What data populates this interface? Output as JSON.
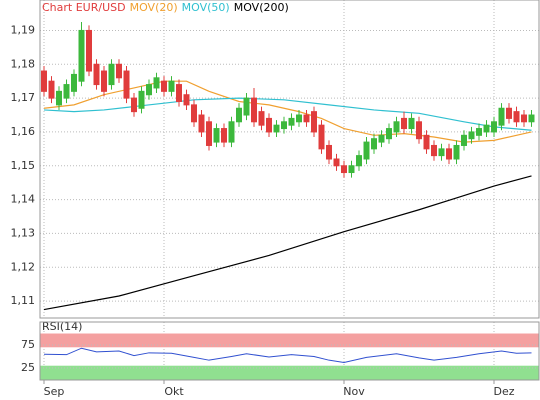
{
  "chart_data": [
    {
      "type": "candlestick",
      "title": "Chart EUR/USD",
      "categories": [
        "Sep",
        null,
        null,
        null,
        null,
        null,
        null,
        null,
        null,
        null,
        null,
        null,
        null,
        null,
        null,
        null,
        "Okt",
        null,
        null,
        null,
        null,
        null,
        null,
        null,
        null,
        null,
        null,
        null,
        null,
        null,
        null,
        null,
        null,
        null,
        null,
        null,
        null,
        null,
        null,
        null,
        "Nov",
        null,
        null,
        null,
        null,
        null,
        null,
        null,
        null,
        null,
        null,
        null,
        null,
        null,
        null,
        null,
        null,
        null,
        null,
        null,
        "Dez",
        null,
        null,
        null,
        null,
        null
      ],
      "open": [
        1.178,
        1.175,
        1.168,
        1.17,
        1.172,
        1.175,
        1.19,
        1.18,
        1.178,
        1.174,
        1.18,
        1.178,
        1.17,
        1.167,
        1.171,
        1.173,
        1.175,
        1.172,
        1.174,
        1.171,
        1.168,
        1.165,
        1.163,
        1.157,
        1.161,
        1.157,
        1.163,
        1.165,
        1.17,
        1.166,
        1.164,
        1.16,
        1.161,
        1.162,
        1.163,
        1.165,
        1.166,
        1.162,
        1.156,
        1.152,
        1.15,
        1.148,
        1.15,
        1.152,
        1.155,
        1.157,
        1.158,
        1.16,
        1.164,
        1.161,
        1.163,
        1.159,
        1.156,
        1.153,
        1.155,
        1.152,
        1.156,
        1.158,
        1.159,
        1.16,
        1.16,
        1.162,
        1.167,
        1.166,
        1.165,
        1.163
      ],
      "high": [
        1.1795,
        1.1765,
        1.1735,
        1.1755,
        1.1785,
        1.1925,
        1.1915,
        1.1815,
        1.1795,
        1.1815,
        1.1815,
        1.1795,
        1.1715,
        1.1735,
        1.1755,
        1.1775,
        1.1765,
        1.1765,
        1.1755,
        1.1725,
        1.1695,
        1.1665,
        1.1645,
        1.1625,
        1.1625,
        1.1645,
        1.1685,
        1.1715,
        1.173,
        1.1675,
        1.1655,
        1.1635,
        1.1645,
        1.1655,
        1.1665,
        1.1665,
        1.1675,
        1.1635,
        1.1575,
        1.1535,
        1.1515,
        1.1515,
        1.1545,
        1.1585,
        1.1595,
        1.1605,
        1.1625,
        1.1645,
        1.166,
        1.1655,
        1.1645,
        1.1605,
        1.1575,
        1.1565,
        1.1565,
        1.1575,
        1.1605,
        1.1615,
        1.1625,
        1.1635,
        1.1645,
        1.1685,
        1.1685,
        1.1675,
        1.1665,
        1.1665
      ],
      "low": [
        1.1705,
        1.1685,
        1.1665,
        1.1685,
        1.1705,
        1.1735,
        1.1765,
        1.1725,
        1.1705,
        1.1725,
        1.1745,
        1.1685,
        1.1645,
        1.1655,
        1.1695,
        1.1715,
        1.1705,
        1.1705,
        1.1675,
        1.1665,
        1.1615,
        1.1585,
        1.1545,
        1.1555,
        1.1555,
        1.1555,
        1.1615,
        1.1635,
        1.1615,
        1.1605,
        1.1585,
        1.1585,
        1.1595,
        1.1605,
        1.1615,
        1.1615,
        1.1585,
        1.1535,
        1.1505,
        1.1485,
        1.1465,
        1.1465,
        1.1485,
        1.1505,
        1.1535,
        1.1555,
        1.1565,
        1.1585,
        1.1595,
        1.1595,
        1.1565,
        1.1535,
        1.1515,
        1.1515,
        1.1505,
        1.1505,
        1.1545,
        1.1565,
        1.1575,
        1.1585,
        1.1585,
        1.1605,
        1.1625,
        1.1615,
        1.1615,
        1.1615
      ],
      "close": [
        1.172,
        1.17,
        1.172,
        1.174,
        1.177,
        1.19,
        1.178,
        1.174,
        1.172,
        1.18,
        1.176,
        1.17,
        1.166,
        1.172,
        1.174,
        1.176,
        1.172,
        1.175,
        1.169,
        1.168,
        1.163,
        1.16,
        1.156,
        1.161,
        1.157,
        1.163,
        1.167,
        1.17,
        1.163,
        1.162,
        1.16,
        1.162,
        1.163,
        1.164,
        1.165,
        1.163,
        1.16,
        1.155,
        1.152,
        1.15,
        1.148,
        1.15,
        1.153,
        1.157,
        1.158,
        1.159,
        1.161,
        1.163,
        1.161,
        1.164,
        1.158,
        1.155,
        1.153,
        1.155,
        1.152,
        1.156,
        1.159,
        1.16,
        1.161,
        1.162,
        1.163,
        1.167,
        1.164,
        1.163,
        1.163,
        1.165
      ],
      "up_color": "#3cb83c",
      "down_color": "#e03c3c",
      "title_color": "#e03c3c",
      "series": [
        {
          "name": "MOV(20)",
          "color": "#f0a030",
          "x": [
            0,
            4,
            8,
            12,
            16,
            19,
            22,
            26,
            30,
            34,
            37,
            40,
            44,
            48,
            52,
            56,
            60,
            63,
            65
          ],
          "values": [
            1.167,
            1.168,
            1.171,
            1.173,
            1.175,
            1.175,
            1.172,
            1.169,
            1.168,
            1.166,
            1.164,
            1.161,
            1.159,
            1.1595,
            1.1585,
            1.157,
            1.1575,
            1.159,
            1.16
          ]
        },
        {
          "name": "MOV(50)",
          "color": "#30c0d0",
          "x": [
            0,
            4,
            8,
            12,
            16,
            20,
            26,
            32,
            38,
            44,
            50,
            56,
            60,
            65
          ],
          "values": [
            1.1665,
            1.166,
            1.1665,
            1.1675,
            1.1685,
            1.1695,
            1.17,
            1.1695,
            1.168,
            1.1665,
            1.1655,
            1.163,
            1.1615,
            1.1605
          ]
        },
        {
          "name": "MOV(200)",
          "color": "#000000",
          "x": [
            0,
            10,
            20,
            30,
            40,
            50,
            55,
            60,
            65
          ],
          "values": [
            1.1075,
            1.1115,
            1.1175,
            1.1235,
            1.1305,
            1.137,
            1.1405,
            1.144,
            1.147
          ]
        }
      ],
      "ylim": [
        1.105,
        1.199
      ],
      "yticks": [
        {
          "value": 1.11,
          "label": "1,11"
        },
        {
          "value": 1.12,
          "label": "1,12"
        },
        {
          "value": 1.13,
          "label": "1,13"
        },
        {
          "value": 1.14,
          "label": "1,14"
        },
        {
          "value": 1.15,
          "label": "1,15"
        },
        {
          "value": 1.16,
          "label": "1,16"
        },
        {
          "value": 1.17,
          "label": "1,17"
        },
        {
          "value": 1.18,
          "label": "1,18"
        },
        {
          "value": 1.19,
          "label": "1,19"
        }
      ],
      "grid": true
    },
    {
      "type": "line",
      "title": "RSI(14)",
      "x": [
        0,
        3,
        5,
        7,
        10,
        12,
        14,
        17,
        20,
        22,
        25,
        27,
        30,
        33,
        36,
        38,
        40,
        43,
        47,
        50,
        52,
        55,
        58,
        61,
        63,
        65
      ],
      "values": [
        55,
        54,
        68,
        60,
        62,
        52,
        58,
        57,
        48,
        42,
        50,
        56,
        49,
        54,
        50,
        42,
        37,
        48,
        56,
        47,
        42,
        48,
        56,
        62,
        57,
        58
      ],
      "color": "#3050d0",
      "ylim": [
        0,
        100
      ],
      "yticks": [
        25,
        75
      ],
      "zones": [
        {
          "from": 70,
          "to": 100,
          "color": "#f4a0a0"
        },
        {
          "from": 0,
          "to": 30,
          "color": "#90e090"
        }
      ],
      "grid": true
    }
  ]
}
